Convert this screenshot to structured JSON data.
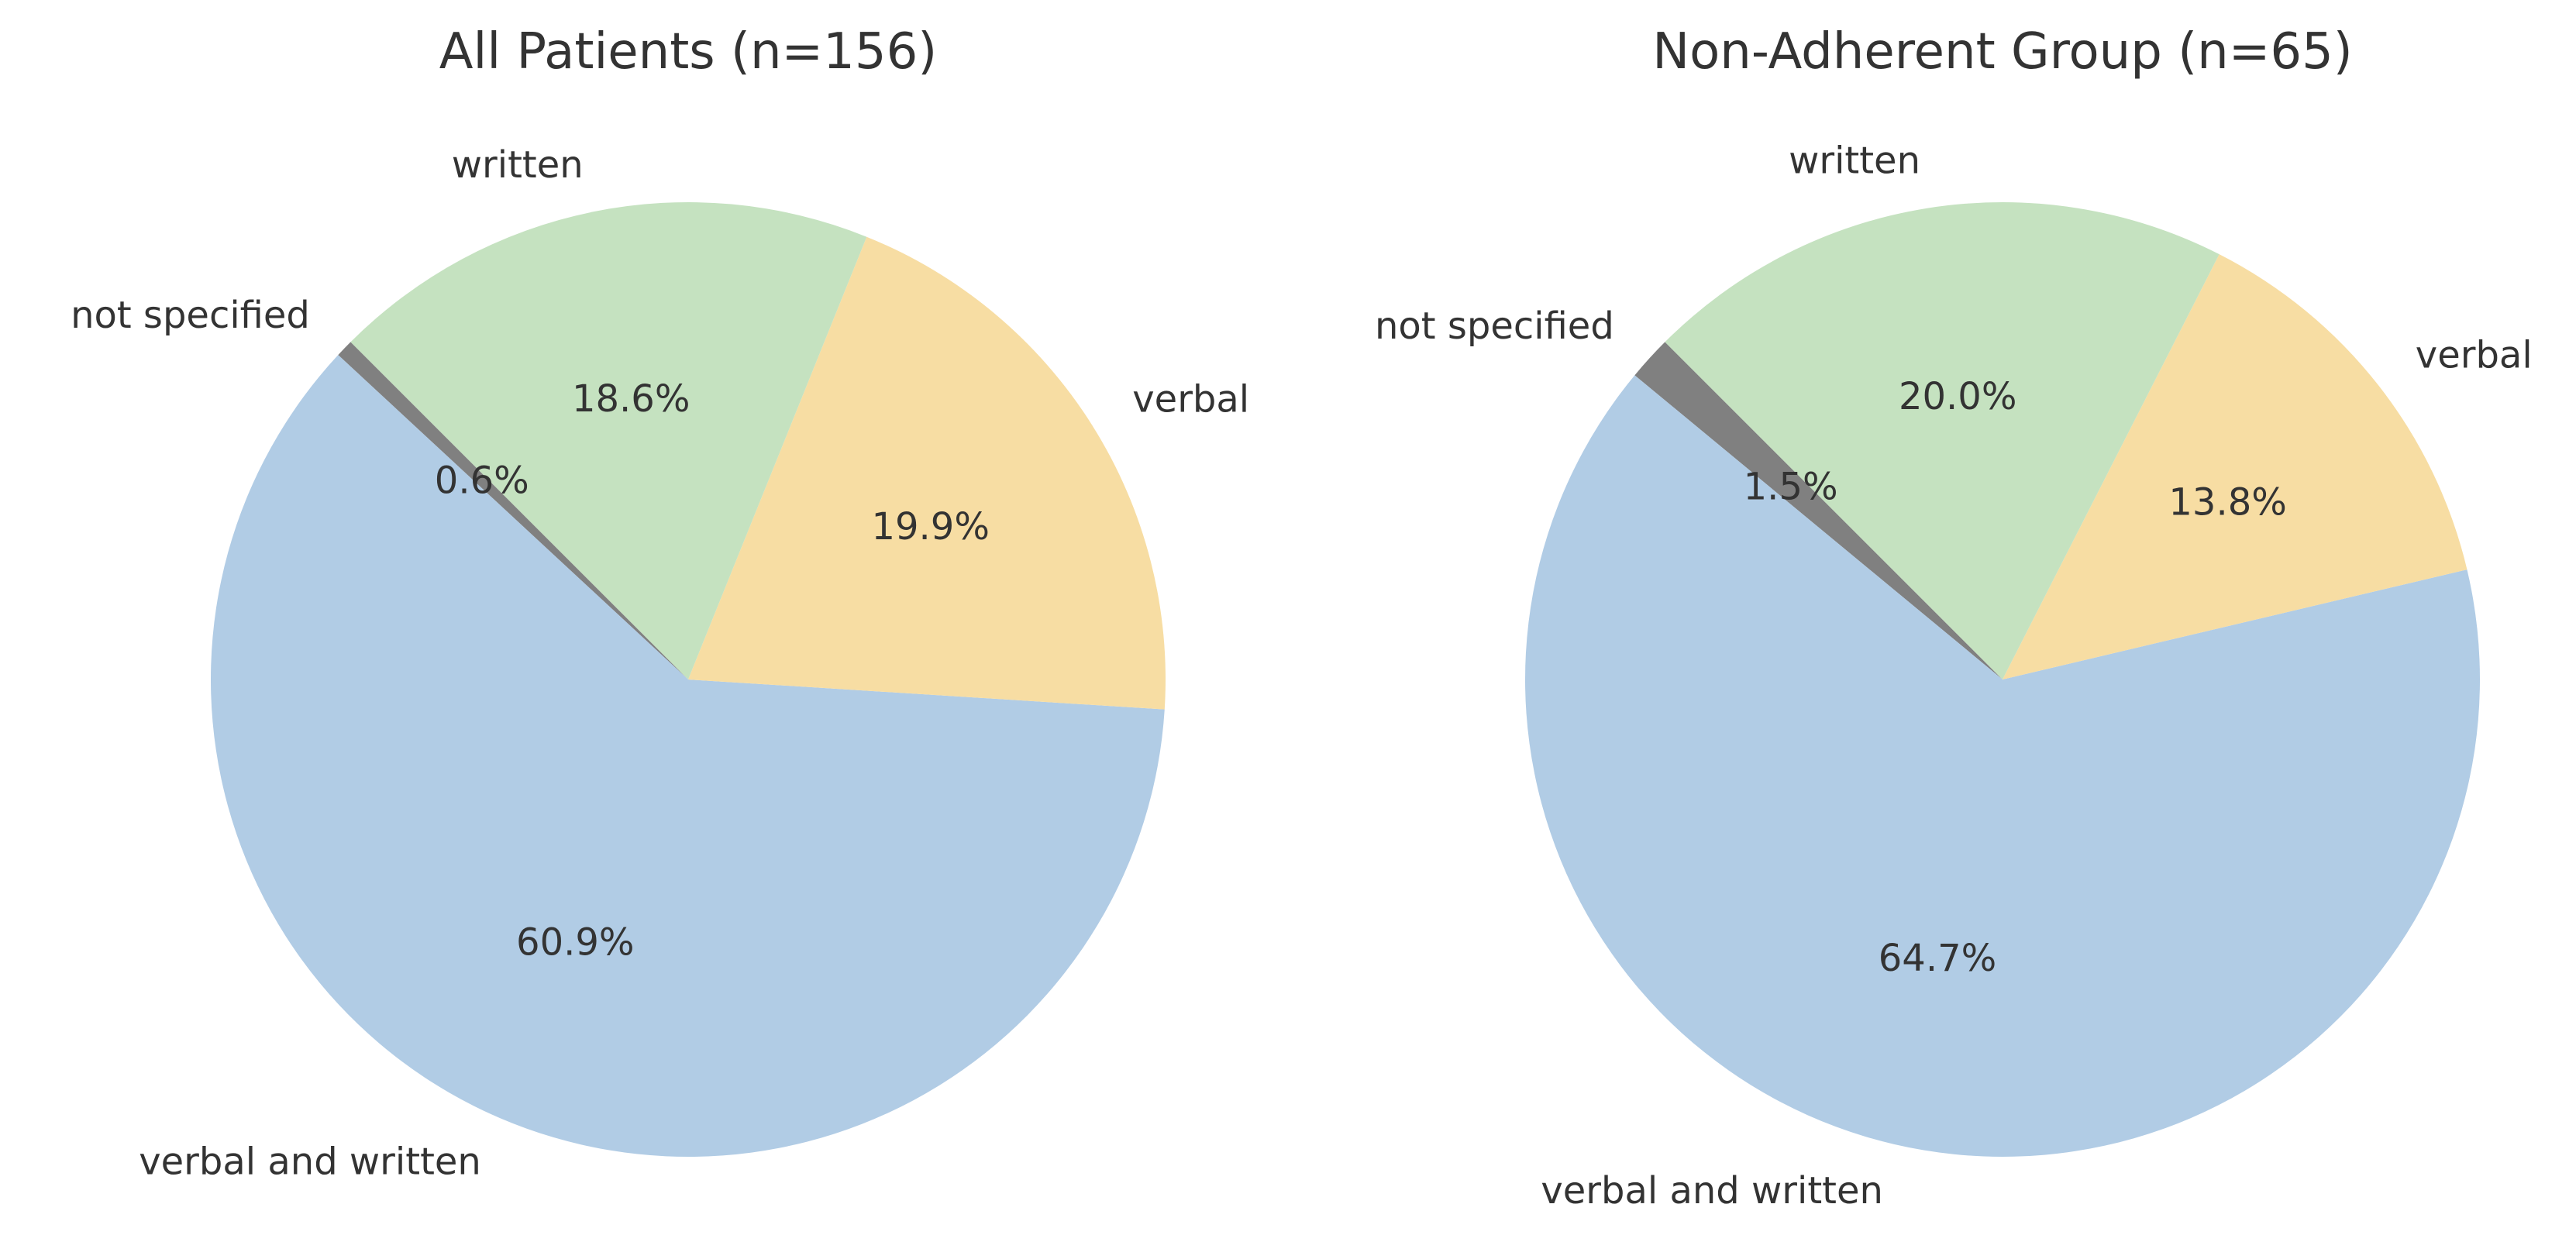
{
  "chart_data": [
    {
      "type": "pie",
      "title": "All Patients (n=156)",
      "start_angle_deg": 135,
      "counterclockwise": true,
      "slices": [
        {
          "label": "not specified",
          "value": 0.6,
          "pct_label": "0.6%",
          "color": "#808080"
        },
        {
          "label": "verbal and written",
          "value": 60.9,
          "pct_label": "60.9%",
          "color": "#b1cce5"
        },
        {
          "label": "verbal",
          "value": 19.9,
          "pct_label": "19.9%",
          "color": "#f7dda3"
        },
        {
          "label": "written",
          "value": 18.6,
          "pct_label": "18.6%",
          "color": "#c5e2c0"
        }
      ]
    },
    {
      "type": "pie",
      "title": "Non-Adherent Group (n=65)",
      "start_angle_deg": 135,
      "counterclockwise": true,
      "slices": [
        {
          "label": "not specified",
          "value": 1.5,
          "pct_label": "1.5%",
          "color": "#808080"
        },
        {
          "label": "verbal and written",
          "value": 64.7,
          "pct_label": "64.7%",
          "color": "#b1cce5"
        },
        {
          "label": "verbal",
          "value": 13.8,
          "pct_label": "13.8%",
          "color": "#f7dda3"
        },
        {
          "label": "written",
          "value": 20.0,
          "pct_label": "20.0%",
          "color": "#c5e2c0"
        }
      ]
    }
  ]
}
